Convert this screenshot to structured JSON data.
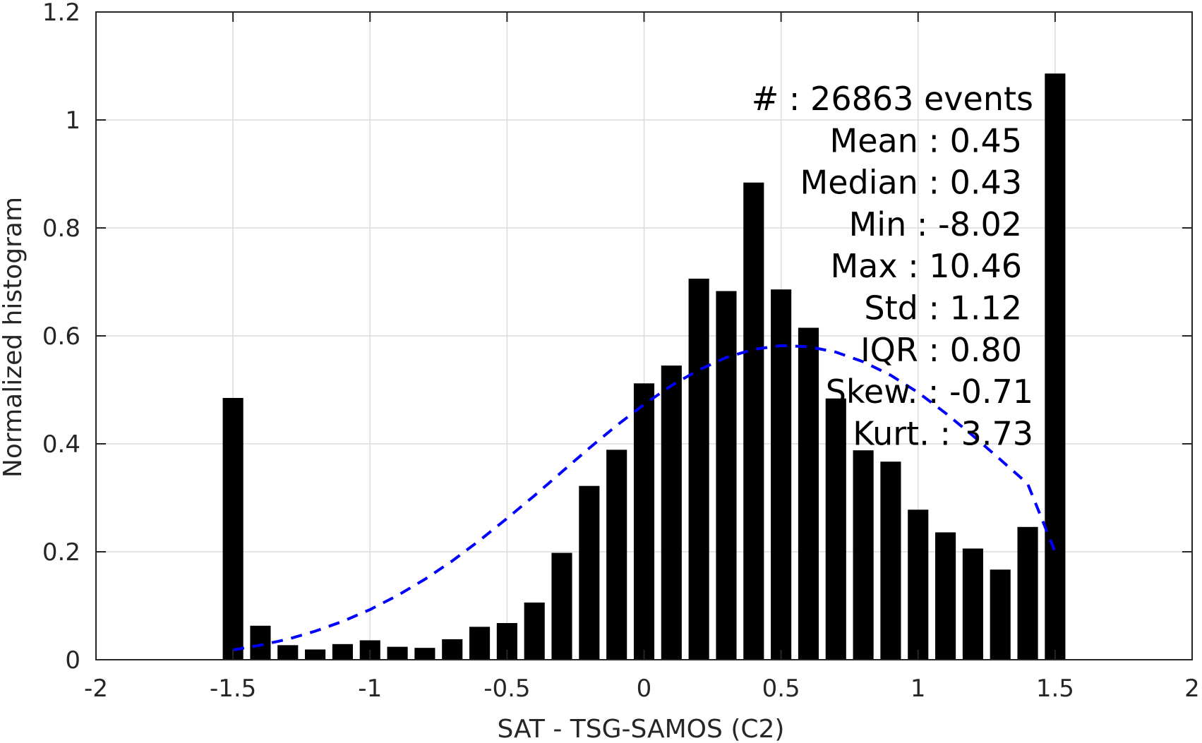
{
  "chart_data": {
    "type": "bar",
    "xlabel": "SAT - TSG-SAMOS (C2)",
    "ylabel": "Normalized histogram",
    "xlim": [
      -2,
      2
    ],
    "ylim": [
      0,
      1.2
    ],
    "xticks": [
      -2,
      -1.5,
      -1,
      -0.5,
      0,
      0.5,
      1,
      1.5,
      2
    ],
    "yticks": [
      0,
      0.2,
      0.4,
      0.6,
      0.8,
      1,
      1.2
    ],
    "xtick_labels": [
      "-2",
      "-1.5",
      "-1",
      "-0.5",
      "0",
      "0.5",
      "1",
      "1.5",
      "2"
    ],
    "ytick_labels": [
      "0",
      "0.2",
      "0.4",
      "0.6",
      "0.8",
      "1",
      "1.2"
    ],
    "grid": true,
    "bar_color": "#000000",
    "fit_color": "#0000ff",
    "bar_width": 0.075,
    "bars": {
      "x": [
        -1.5,
        -1.4,
        -1.3,
        -1.2,
        -1.1,
        -1.0,
        -0.9,
        -0.8,
        -0.7,
        -0.6,
        -0.5,
        -0.4,
        -0.3,
        -0.2,
        -0.1,
        0.0,
        0.1,
        0.2,
        0.3,
        0.4,
        0.5,
        0.6,
        0.7,
        0.8,
        0.9,
        1.0,
        1.1,
        1.2,
        1.3,
        1.4,
        1.5
      ],
      "values": [
        0.485,
        0.063,
        0.027,
        0.019,
        0.029,
        0.036,
        0.024,
        0.022,
        0.038,
        0.061,
        0.068,
        0.106,
        0.198,
        0.322,
        0.389,
        0.512,
        0.545,
        0.706,
        0.683,
        0.884,
        0.686,
        0.615,
        0.484,
        0.388,
        0.367,
        0.278,
        0.236,
        0.206,
        0.167,
        0.246,
        1.086
      ]
    },
    "fit": {
      "style": "dashed",
      "x": [
        -1.5,
        -1.4,
        -1.3,
        -1.2,
        -1.1,
        -1.0,
        -0.9,
        -0.8,
        -0.7,
        -0.6,
        -0.5,
        -0.4,
        -0.3,
        -0.2,
        -0.1,
        0.0,
        0.1,
        0.2,
        0.3,
        0.4,
        0.5,
        0.6,
        0.7,
        0.8,
        0.9,
        1.0,
        1.1,
        1.2,
        1.3,
        1.4,
        1.5
      ],
      "y": [
        0.018,
        0.027,
        0.038,
        0.053,
        0.071,
        0.093,
        0.119,
        0.149,
        0.183,
        0.221,
        0.262,
        0.304,
        0.348,
        0.392,
        0.434,
        0.473,
        0.508,
        0.537,
        0.56,
        0.575,
        0.582,
        0.58,
        0.57,
        0.552,
        0.527,
        0.495,
        0.457,
        0.415,
        0.371,
        0.326,
        0.2
      ]
    },
    "annotation": {
      "position": "top-right",
      "lines": [
        "#  : 26863 events",
        "Mean : 0.45",
        "Median : 0.43",
        "Min : -8.02",
        "Max : 10.46",
        "Std : 1.12",
        "IQR : 0.80",
        "Skew. : -0.71",
        "Kurt. : 3.73"
      ]
    }
  }
}
